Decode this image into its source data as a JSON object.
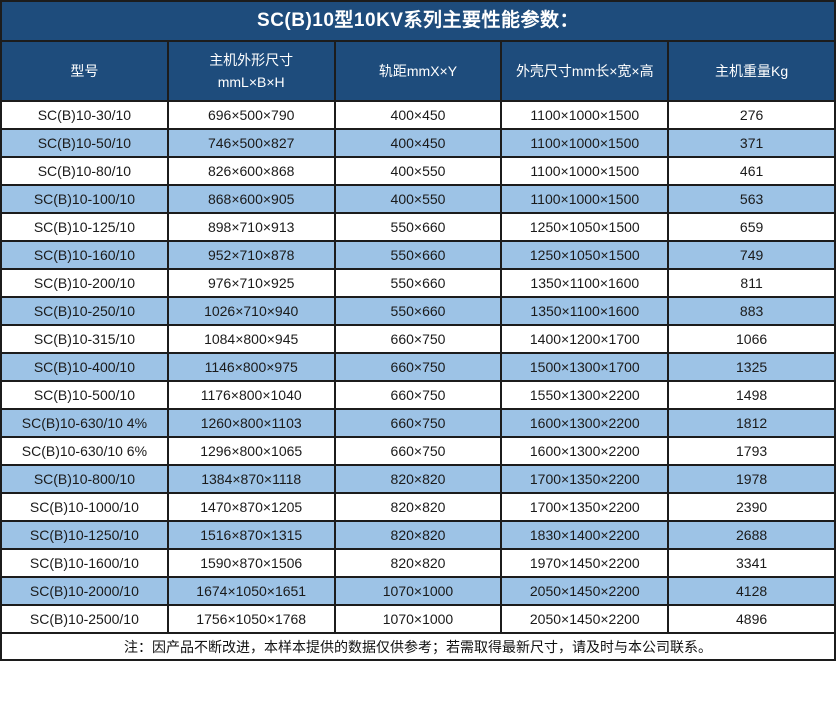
{
  "title": "SC(B)10型10KV系列主要性能参数：",
  "table": {
    "columns": [
      "型号",
      "主机外形尺寸\nmmL×B×H",
      "轨距mmX×Y",
      "外壳尺寸mm长×宽×高",
      "主机重量Kg"
    ],
    "rows": [
      [
        "SC(B)10-30/10",
        "696×500×790",
        "400×450",
        "1100×1000×1500",
        "276"
      ],
      [
        "SC(B)10-50/10",
        "746×500×827",
        "400×450",
        "1100×1000×1500",
        "371"
      ],
      [
        "SC(B)10-80/10",
        "826×600×868",
        "400×550",
        "1100×1000×1500",
        "461"
      ],
      [
        "SC(B)10-100/10",
        "868×600×905",
        "400×550",
        "1100×1000×1500",
        "563"
      ],
      [
        "SC(B)10-125/10",
        "898×710×913",
        "550×660",
        "1250×1050×1500",
        "659"
      ],
      [
        "SC(B)10-160/10",
        "952×710×878",
        "550×660",
        "1250×1050×1500",
        "749"
      ],
      [
        "SC(B)10-200/10",
        "976×710×925",
        "550×660",
        "1350×1100×1600",
        "811"
      ],
      [
        "SC(B)10-250/10",
        "1026×710×940",
        "550×660",
        "1350×1100×1600",
        "883"
      ],
      [
        "SC(B)10-315/10",
        "1084×800×945",
        "660×750",
        "1400×1200×1700",
        "1066"
      ],
      [
        "SC(B)10-400/10",
        "1146×800×975",
        "660×750",
        "1500×1300×1700",
        "1325"
      ],
      [
        "SC(B)10-500/10",
        "1176×800×1040",
        "660×750",
        "1550×1300×2200",
        "1498"
      ],
      [
        "SC(B)10-630/10 4%",
        "1260×800×1103",
        "660×750",
        "1600×1300×2200",
        "1812"
      ],
      [
        "SC(B)10-630/10 6%",
        "1296×800×1065",
        "660×750",
        "1600×1300×2200",
        "1793"
      ],
      [
        "SC(B)10-800/10",
        "1384×870×1118",
        "820×820",
        "1700×1350×2200",
        "1978"
      ],
      [
        "SC(B)10-1000/10",
        "1470×870×1205",
        "820×820",
        "1700×1350×2200",
        "2390"
      ],
      [
        "SC(B)10-1250/10",
        "1516×870×1315",
        "820×820",
        "1830×1400×2200",
        "2688"
      ],
      [
        "SC(B)10-1600/10",
        "1590×870×1506",
        "820×820",
        "1970×1450×2200",
        "3341"
      ],
      [
        "SC(B)10-2000/10",
        "1674×1050×1651",
        "1070×1000",
        "2050×1450×2200",
        "4128"
      ],
      [
        "SC(B)10-2500/10",
        "1756×1050×1768",
        "1070×1000",
        "2050×1450×2200",
        "4896"
      ]
    ]
  },
  "note": "注：因产品不断改进，本样本提供的数据仅供参考；若需取得最新尺寸，请及时与本公司联系。",
  "colors": {
    "header_bg": "#1e4c7c",
    "row_alt_bg": "#9dc3e6",
    "row_bg": "#ffffff",
    "border": "#1c1c1c",
    "title_text": "#ffffff"
  }
}
